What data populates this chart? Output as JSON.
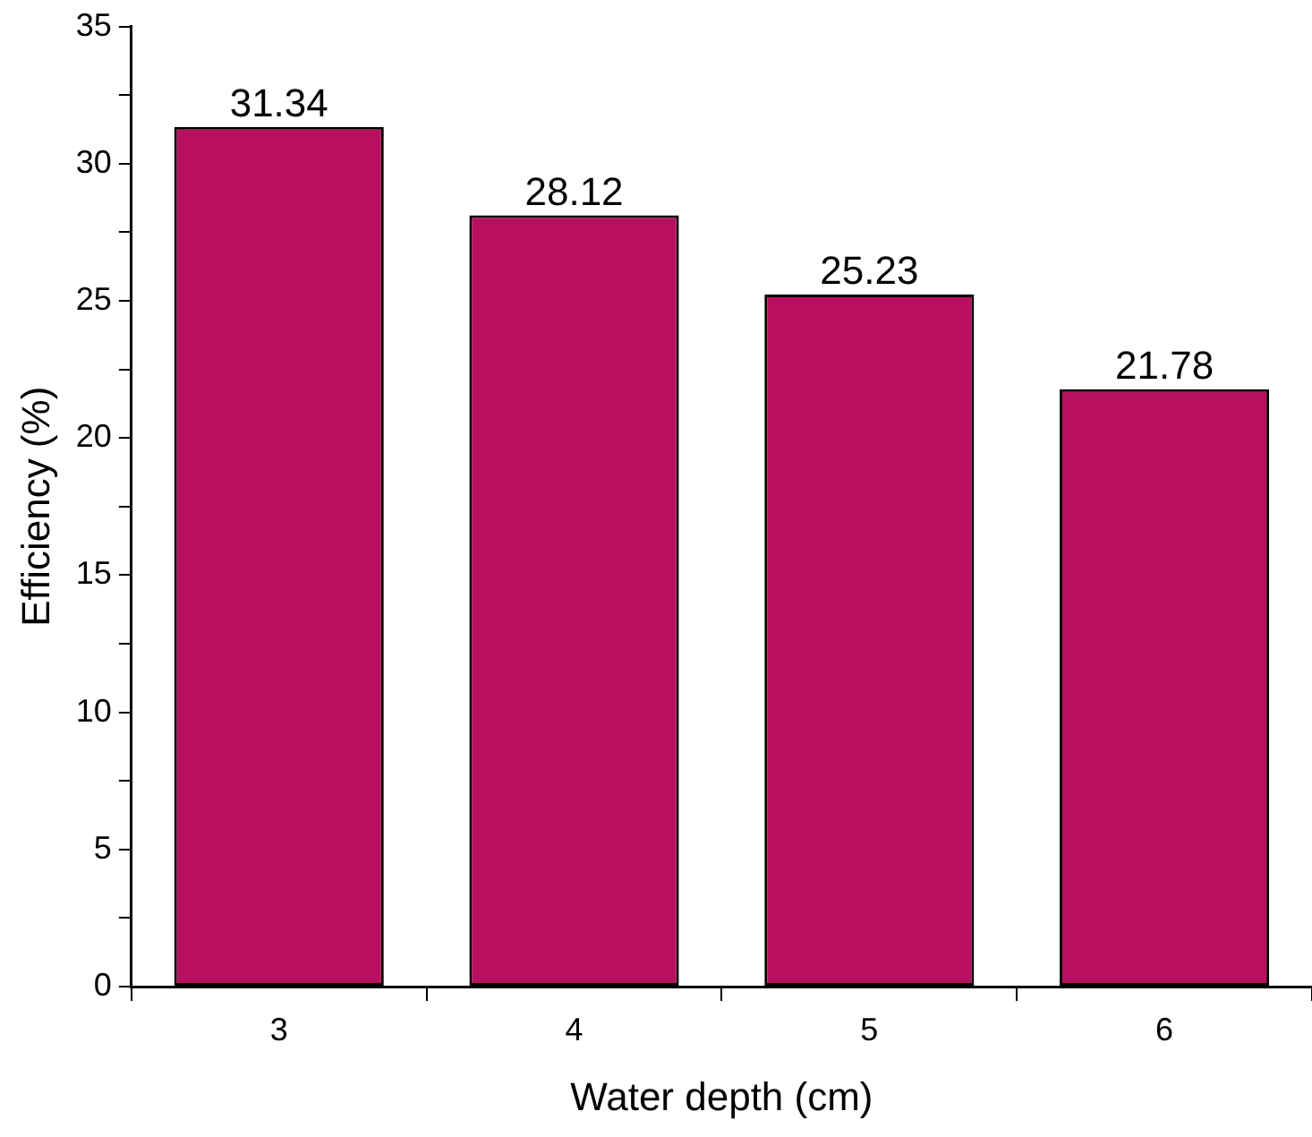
{
  "chart_data": {
    "type": "bar",
    "xlabel": "Water depth (cm)",
    "ylabel": "Efficiency (%)",
    "categories": [
      "3",
      "4",
      "5",
      "6"
    ],
    "values": [
      31.34,
      28.12,
      25.23,
      21.78
    ],
    "color": "#b8105e",
    "ylim": [
      0,
      35
    ],
    "yticks": [
      0,
      {
        "value": 2.5,
        "label": null
      },
      5,
      {
        "value": 7.5,
        "label": null
      },
      10,
      {
        "value": 12.5,
        "label": null
      },
      15,
      {
        "value": 17.5,
        "label": null
      },
      20,
      {
        "value": 22.5,
        "label": null
      },
      25,
      {
        "value": 27.5,
        "label": null
      },
      30,
      {
        "value": 32.5,
        "label": null
      },
      35
    ],
    "data_labels": true,
    "grid": false,
    "legend": false
  }
}
